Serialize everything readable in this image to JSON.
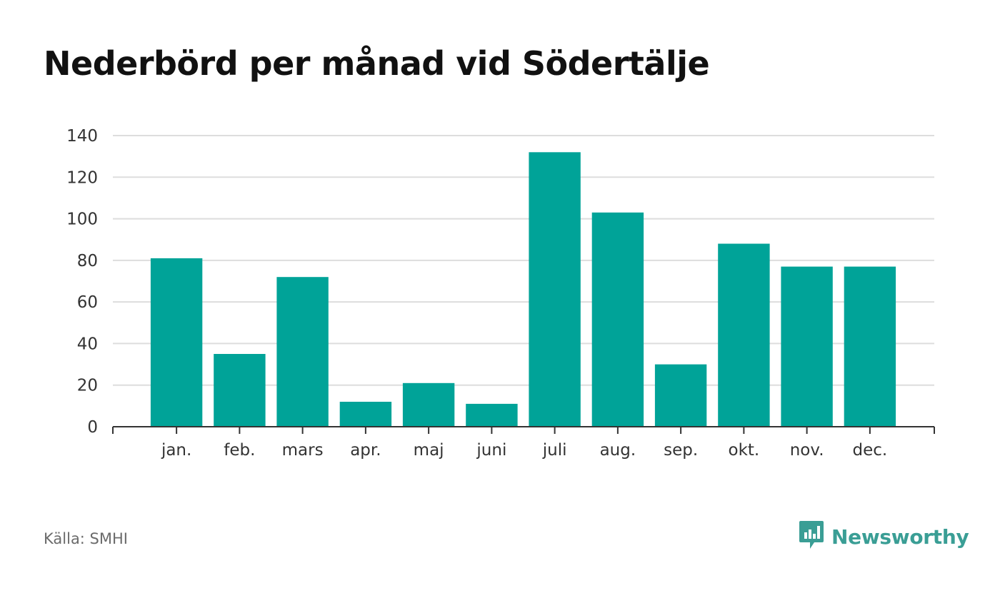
{
  "title": "Nederbörd per månad vid Södertälje",
  "source": "Källa: SMHI",
  "brand": {
    "name": "Newsworthy",
    "icon": "newsworthy-logo-icon"
  },
  "colors": {
    "bar": "#00a398",
    "grid": "#dddddd",
    "axis": "#333333",
    "text": "#333333",
    "brand": "#3a9e95"
  },
  "chart_data": {
    "type": "bar",
    "categories": [
      "jan.",
      "feb.",
      "mars",
      "apr.",
      "maj",
      "juni",
      "juli",
      "aug.",
      "sep.",
      "okt.",
      "nov.",
      "dec."
    ],
    "values": [
      81,
      35,
      72,
      12,
      21,
      11,
      132,
      103,
      30,
      88,
      77,
      77
    ],
    "ylim": [
      0,
      140
    ],
    "yticks": [
      0,
      20,
      40,
      60,
      80,
      100,
      120,
      140
    ],
    "grid": true,
    "xlabel": "",
    "ylabel": ""
  }
}
